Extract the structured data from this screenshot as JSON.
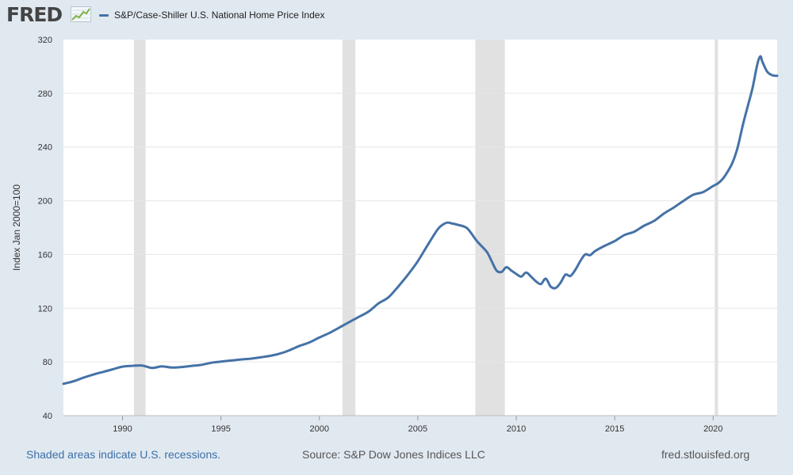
{
  "header": {
    "logo_text": "FRED",
    "legend_label": "S&P/Case-Shiller U.S. National Home Price Index",
    "series_color": "#4572a7"
  },
  "footer": {
    "recession_note": "Shaded areas indicate U.S. recessions.",
    "source": "Source: S&P Dow Jones Indices LLC",
    "site": "fred.stlouisfed.org"
  },
  "chart_data": {
    "type": "line",
    "title": "S&P/Case-Shiller U.S. National Home Price Index",
    "xlabel": "",
    "ylabel": "Index Jan 2000=100",
    "xlim": [
      1987.0,
      2023.25
    ],
    "ylim": [
      40,
      320
    ],
    "grid": true,
    "legend": "top-left",
    "x_ticks": [
      1990,
      1995,
      2000,
      2005,
      2010,
      2015,
      2020
    ],
    "y_ticks": [
      40,
      80,
      120,
      160,
      200,
      240,
      280,
      320
    ],
    "recessions": [
      [
        1990.58,
        1991.17
      ],
      [
        2001.17,
        2001.83
      ],
      [
        2007.92,
        2009.42
      ],
      [
        2020.08,
        2020.25
      ]
    ],
    "series": [
      {
        "name": "S&P/Case-Shiller U.S. National Home Price Index",
        "color": "#4572a7",
        "x": [
          1987.0,
          1987.5,
          1988.0,
          1988.5,
          1989.0,
          1989.5,
          1990.0,
          1990.5,
          1991.0,
          1991.5,
          1992.0,
          1992.5,
          1993.0,
          1993.5,
          1994.0,
          1994.5,
          1995.0,
          1995.5,
          1996.0,
          1996.5,
          1997.0,
          1997.5,
          1998.0,
          1998.5,
          1999.0,
          1999.5,
          2000.0,
          2000.5,
          2001.0,
          2001.5,
          2002.0,
          2002.5,
          2003.0,
          2003.5,
          2004.0,
          2004.5,
          2005.0,
          2005.5,
          2006.0,
          2006.25,
          2006.5,
          2006.75,
          2007.0,
          2007.5,
          2008.0,
          2008.5,
          2008.75,
          2009.0,
          2009.25,
          2009.5,
          2009.75,
          2010.0,
          2010.25,
          2010.5,
          2010.75,
          2011.0,
          2011.25,
          2011.5,
          2011.75,
          2012.0,
          2012.25,
          2012.5,
          2012.75,
          2013.0,
          2013.25,
          2013.5,
          2013.75,
          2014.0,
          2014.5,
          2015.0,
          2015.5,
          2016.0,
          2016.5,
          2017.0,
          2017.5,
          2018.0,
          2018.5,
          2019.0,
          2019.5,
          2020.0,
          2020.25,
          2020.5,
          2020.75,
          2021.0,
          2021.25,
          2021.5,
          2021.75,
          2022.0,
          2022.25,
          2022.4,
          2022.5,
          2022.75,
          2023.0,
          2023.25
        ],
        "values": [
          63.7,
          65.5,
          68.2,
          70.5,
          72.5,
          74.5,
          76.5,
          77.1,
          77.3,
          75.5,
          76.7,
          75.8,
          76.2,
          77.0,
          77.8,
          79.3,
          80.2,
          81.0,
          81.8,
          82.4,
          83.4,
          84.5,
          86.2,
          88.8,
          92.0,
          94.5,
          98.2,
          101.5,
          105.5,
          109.5,
          113.5,
          117.5,
          123.5,
          128.0,
          136.0,
          145.0,
          155.0,
          167.0,
          178.5,
          182.0,
          183.7,
          183.0,
          182.2,
          179.5,
          170.0,
          162.0,
          155.0,
          148.0,
          147.0,
          150.5,
          148.0,
          145.5,
          143.5,
          146.5,
          143.5,
          140.0,
          138.0,
          142.0,
          136.0,
          135.0,
          139.0,
          145.0,
          144.0,
          148.5,
          155.0,
          160.0,
          159.5,
          162.5,
          166.5,
          170.0,
          174.5,
          177.0,
          181.5,
          185.0,
          190.5,
          195.0,
          200.0,
          204.5,
          206.5,
          211.0,
          213.0,
          216.5,
          222.0,
          229.0,
          240.0,
          256.0,
          270.0,
          284.0,
          302.0,
          307.5,
          303.5,
          296.0,
          293.5,
          293.0
        ]
      }
    ]
  }
}
